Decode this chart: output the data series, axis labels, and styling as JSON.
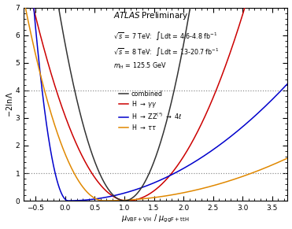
{
  "xlim": [
    -0.7,
    3.75
  ],
  "ylim": [
    0,
    7
  ],
  "xlabel": "$\\mu_{\\mathrm{VBF+VH}}$ / $\\mu_{\\mathrm{ggF+ttH}}$",
  "ylabel": "$-2\\ln\\Lambda$",
  "hlines": [
    1.0,
    4.0
  ],
  "info_lines": [
    "$\\sqrt{s}$ = 7 TeV:  $\\int$Ldt = 4.6-4.8 fb$^{-1}$",
    "$\\sqrt{s}$ = 8 TeV:  $\\int$Ldt = 13-20.7 fb$^{-1}$",
    "$m_{H}$ = 125.5 GeV"
  ],
  "legend_entries": [
    {
      "label": "combined",
      "color": "#333333"
    },
    {
      "label": "H $\\rightarrow$ $\\gamma\\gamma$",
      "color": "#cc0000"
    },
    {
      "label": "H $\\rightarrow$ ZZ$^{(*)}$ $\\rightarrow$ 4$\\ell$",
      "color": "#0000cc"
    },
    {
      "label": "H $\\rightarrow$ $\\tau\\tau$",
      "color": "#e08800"
    }
  ],
  "curves": {
    "combined": {
      "mu_min": 1.0,
      "sig_l": 0.42,
      "sig_r": 0.42
    },
    "gamgam": {
      "mu_min": 1.05,
      "sig_l": 0.6,
      "sig_r": 0.75
    },
    "ZZ": {
      "mu_min": 0.05,
      "sig_l": 0.22,
      "sig_r": 1.8
    },
    "tautau": {
      "mu_min": 0.65,
      "sig_l": 0.5,
      "sig_r": 2.5
    }
  }
}
